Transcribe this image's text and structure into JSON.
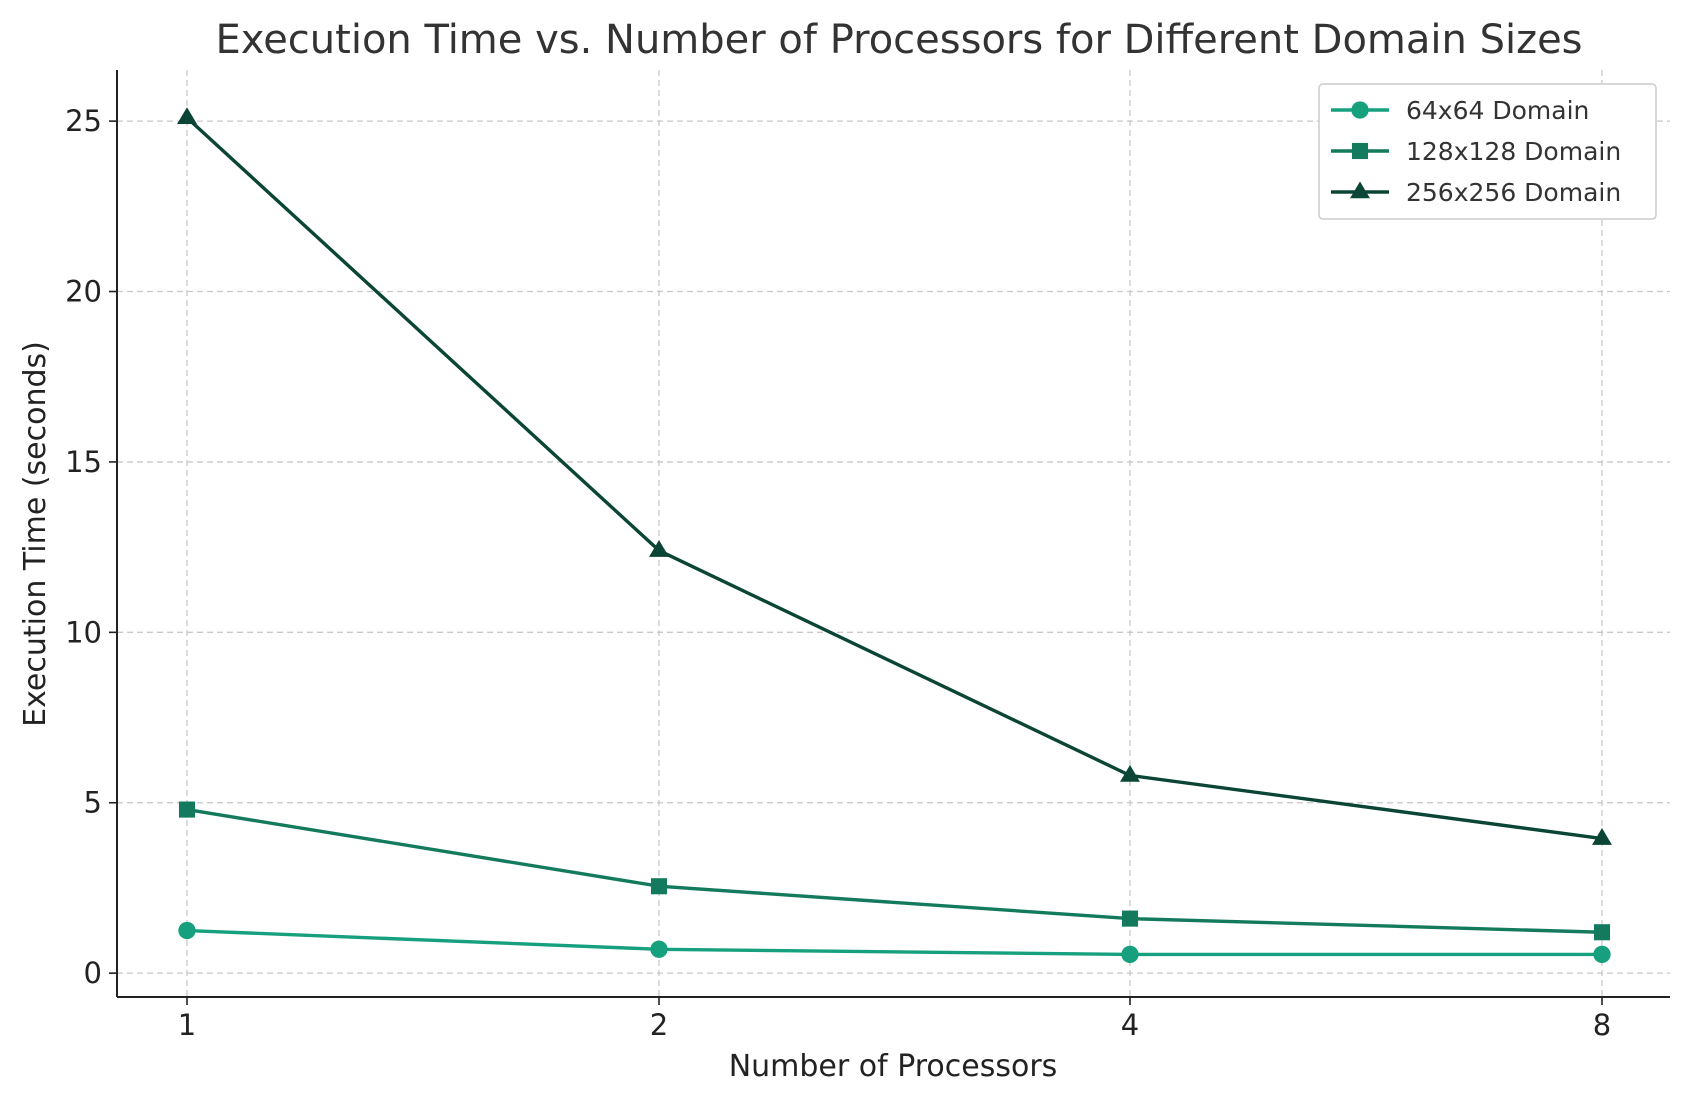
{
  "chart_data": {
    "type": "line",
    "title": "Execution Time vs. Number of Processors for Different Domain Sizes",
    "xlabel": "Number of Processors",
    "ylabel": "Execution Time (seconds)",
    "x": [
      1,
      2,
      4,
      8
    ],
    "x_tick_labels": [
      "1",
      "2",
      "4",
      "8"
    ],
    "x_scale": "categorical",
    "ylim": [
      -0.7,
      26.5
    ],
    "y_ticks": [
      0,
      5,
      10,
      15,
      20,
      25
    ],
    "y_tick_labels": [
      "0",
      "5",
      "10",
      "15",
      "20",
      "25"
    ],
    "grid": true,
    "legend_position": "top-right",
    "series": [
      {
        "name": "64x64 Domain",
        "values": [
          1.25,
          0.7,
          0.55,
          0.55
        ],
        "marker": "circle",
        "color": "#17a07e"
      },
      {
        "name": "128x128 Domain",
        "values": [
          4.8,
          2.55,
          1.6,
          1.2
        ],
        "marker": "square",
        "color": "#147a5e"
      },
      {
        "name": "256x256 Domain",
        "values": [
          25.1,
          12.4,
          5.8,
          3.95
        ],
        "marker": "triangle",
        "color": "#0b4535"
      }
    ]
  }
}
